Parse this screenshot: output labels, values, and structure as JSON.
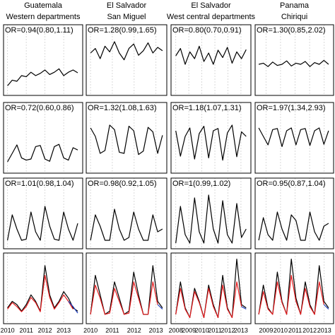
{
  "chart_data": [
    {
      "type": "line",
      "title": "Guatemala",
      "subtitle": "Western departments",
      "annotation": "OR=0.94(0.80,1.11)",
      "x": [
        2010,
        2010.25,
        2010.5,
        2010.75,
        2011,
        2011.25,
        2011.5,
        2011.75,
        2012,
        2012.25,
        2012.5,
        2012.75,
        2013,
        2013.25,
        2013.5,
        2013.75
      ],
      "xlim": [
        2009.9,
        2013.9
      ],
      "xticks": [
        2010,
        2011,
        2012,
        2013
      ],
      "ylim": [
        0,
        1
      ],
      "series": [
        {
          "color": "#000000",
          "values": [
            0.12,
            0.22,
            0.2,
            0.3,
            0.28,
            0.36,
            0.3,
            0.34,
            0.4,
            0.32,
            0.36,
            0.42,
            0.3,
            0.36,
            0.4,
            0.35
          ]
        }
      ]
    },
    {
      "type": "line",
      "title": "El Salvador",
      "subtitle": "San Miguel",
      "annotation": "OR=1.28(0.99,1.65)",
      "x": [
        2010,
        2010.22,
        2010.44,
        2010.66,
        2010.88,
        2011.1,
        2011.32,
        2011.54,
        2011.76,
        2011.98,
        2012.2,
        2012.42,
        2012.64,
        2012.86,
        2013.08,
        2013.3
      ],
      "xlim": [
        2009.9,
        2013.4
      ],
      "xticks": [
        2010,
        2011,
        2012,
        2013
      ],
      "ylim": [
        0,
        1
      ],
      "series": [
        {
          "color": "#000000",
          "values": [
            0.7,
            0.78,
            0.6,
            0.82,
            0.72,
            0.9,
            0.7,
            0.58,
            0.78,
            0.86,
            0.66,
            0.74,
            0.88,
            0.7,
            0.8,
            0.74
          ]
        }
      ]
    },
    {
      "type": "line",
      "title": "El Salvador",
      "subtitle": "West central departments",
      "annotation": "OR=0.80(0.70,0.91)",
      "x": [
        2008,
        2008.36,
        2008.72,
        2009.08,
        2009.44,
        2009.8,
        2010.16,
        2010.52,
        2010.88,
        2011.24,
        2011.6,
        2011.96,
        2012.32,
        2012.68,
        2013.04,
        2013.4
      ],
      "xlim": [
        2007.8,
        2013.6
      ],
      "xticks": [
        2008,
        2009,
        2010,
        2011,
        2012,
        2013
      ],
      "ylim": [
        0,
        1
      ],
      "series": [
        {
          "color": "#000000",
          "values": [
            0.65,
            0.78,
            0.5,
            0.72,
            0.6,
            0.82,
            0.55,
            0.7,
            0.5,
            0.75,
            0.62,
            0.8,
            0.52,
            0.72,
            0.6,
            0.76
          ]
        }
      ]
    },
    {
      "type": "line",
      "title": "Panama",
      "subtitle": "Chiriqui",
      "annotation": "OR=1.30(0.85,2.02)",
      "x": [
        2008.5,
        2008.82,
        2009.14,
        2009.46,
        2009.78,
        2010.1,
        2010.42,
        2010.74,
        2011.06,
        2011.38,
        2011.7,
        2012.02,
        2012.34,
        2012.66,
        2012.98,
        2013.3
      ],
      "xlim": [
        2008.4,
        2013.5
      ],
      "xticks": [
        2009,
        2010,
        2011,
        2012,
        2013
      ],
      "ylim": [
        0,
        1
      ],
      "series": [
        {
          "color": "#000000",
          "values": [
            0.5,
            0.52,
            0.46,
            0.54,
            0.48,
            0.5,
            0.56,
            0.47,
            0.52,
            0.5,
            0.55,
            0.46,
            0.53,
            0.5,
            0.57,
            0.5
          ]
        }
      ]
    },
    {
      "type": "line",
      "annotation": "OR=0.72(0.60,0.86)",
      "x": [
        2010,
        2010.25,
        2010.5,
        2010.75,
        2011,
        2011.25,
        2011.5,
        2011.75,
        2012,
        2012.25,
        2012.5,
        2012.75,
        2013,
        2013.25,
        2013.5,
        2013.75
      ],
      "xlim": [
        2009.9,
        2013.9
      ],
      "xticks": [
        2010,
        2011,
        2012,
        2013
      ],
      "ylim": [
        0,
        1
      ],
      "series": [
        {
          "color": "#000000",
          "values": [
            0.15,
            0.3,
            0.45,
            0.22,
            0.18,
            0.2,
            0.42,
            0.44,
            0.2,
            0.16,
            0.42,
            0.46,
            0.22,
            0.18,
            0.4,
            0.36
          ]
        }
      ]
    },
    {
      "type": "line",
      "annotation": "OR=1.32(1.08,1.63)",
      "x": [
        2010,
        2010.22,
        2010.44,
        2010.66,
        2010.88,
        2011.1,
        2011.32,
        2011.54,
        2011.76,
        2011.98,
        2012.2,
        2012.42,
        2012.64,
        2012.86,
        2013.08,
        2013.3
      ],
      "xlim": [
        2009.9,
        2013.4
      ],
      "xticks": [
        2010,
        2011,
        2012,
        2013
      ],
      "ylim": [
        0,
        1
      ],
      "series": [
        {
          "color": "#000000",
          "values": [
            0.75,
            0.6,
            0.3,
            0.35,
            0.8,
            0.72,
            0.32,
            0.3,
            0.78,
            0.7,
            0.28,
            0.34,
            0.76,
            0.68,
            0.3,
            0.62
          ]
        }
      ]
    },
    {
      "type": "line",
      "annotation": "OR=1.18(1.07,1.31)",
      "x": [
        2008,
        2008.36,
        2008.72,
        2009.08,
        2009.44,
        2009.8,
        2010.16,
        2010.52,
        2010.88,
        2011.24,
        2011.6,
        2011.96,
        2012.32,
        2012.68,
        2013.04,
        2013.4
      ],
      "xlim": [
        2007.8,
        2013.6
      ],
      "xticks": [
        2008,
        2009,
        2010,
        2011,
        2012,
        2013
      ],
      "ylim": [
        0,
        1
      ],
      "series": [
        {
          "color": "#000000",
          "values": [
            0.7,
            0.25,
            0.6,
            0.75,
            0.2,
            0.65,
            0.78,
            0.22,
            0.7,
            0.74,
            0.18,
            0.66,
            0.8,
            0.24,
            0.68,
            0.6
          ]
        }
      ]
    },
    {
      "type": "line",
      "annotation": "OR=1.97(1.34,2.93)",
      "x": [
        2008.5,
        2008.82,
        2009.14,
        2009.46,
        2009.78,
        2010.1,
        2010.42,
        2010.74,
        2011.06,
        2011.38,
        2011.7,
        2012.02,
        2012.34,
        2012.66,
        2012.98,
        2013.3
      ],
      "xlim": [
        2008.4,
        2013.5
      ],
      "xticks": [
        2009,
        2010,
        2011,
        2012,
        2013
      ],
      "ylim": [
        0,
        1
      ],
      "series": [
        {
          "color": "#000000",
          "values": [
            0.75,
            0.6,
            0.45,
            0.72,
            0.74,
            0.42,
            0.7,
            0.75,
            0.45,
            0.72,
            0.74,
            0.44,
            0.7,
            0.75,
            0.46,
            0.7
          ]
        }
      ]
    },
    {
      "type": "line",
      "annotation": "OR=1.01(0.98,1.04)",
      "x": [
        2010,
        2010.25,
        2010.5,
        2010.75,
        2011,
        2011.25,
        2011.5,
        2011.75,
        2012,
        2012.25,
        2012.5,
        2012.75,
        2013,
        2013.25,
        2013.5,
        2013.75
      ],
      "xlim": [
        2009.9,
        2013.9
      ],
      "xticks": [
        2010,
        2011,
        2012,
        2013
      ],
      "ylim": [
        0,
        1
      ],
      "series": [
        {
          "color": "#000000",
          "values": [
            0.1,
            0.55,
            0.3,
            0.1,
            0.12,
            0.6,
            0.25,
            0.1,
            0.7,
            0.35,
            0.12,
            0.1,
            0.6,
            0.3,
            0.1,
            0.4
          ]
        }
      ]
    },
    {
      "type": "line",
      "annotation": "OR=0.98(0.92,1.05)",
      "x": [
        2010,
        2010.22,
        2010.44,
        2010.66,
        2010.88,
        2011.1,
        2011.32,
        2011.54,
        2011.76,
        2011.98,
        2012.2,
        2012.42,
        2012.64,
        2012.86,
        2013.08,
        2013.3
      ],
      "xlim": [
        2009.9,
        2013.4
      ],
      "xticks": [
        2010,
        2011,
        2012,
        2013
      ],
      "ylim": [
        0,
        1
      ],
      "series": [
        {
          "color": "#000000",
          "values": [
            0.1,
            0.55,
            0.35,
            0.1,
            0.1,
            0.65,
            0.3,
            0.1,
            0.15,
            0.6,
            0.3,
            0.1,
            0.1,
            0.55,
            0.25,
            0.3
          ]
        }
      ]
    },
    {
      "type": "line",
      "annotation": "OR=1(0.99,1.02)",
      "x": [
        2008,
        2008.36,
        2008.72,
        2009.08,
        2009.44,
        2009.8,
        2010.16,
        2010.52,
        2010.88,
        2011.24,
        2011.6,
        2011.96,
        2012.32,
        2012.68,
        2013.04,
        2013.4
      ],
      "xlim": [
        2007.8,
        2013.6
      ],
      "xticks": [
        2008,
        2009,
        2010,
        2011,
        2012,
        2013
      ],
      "ylim": [
        0,
        1
      ],
      "series": [
        {
          "color": "#000000",
          "values": [
            0.05,
            0.7,
            0.2,
            0.05,
            0.85,
            0.25,
            0.05,
            0.9,
            0.3,
            0.05,
            0.8,
            0.2,
            0.05,
            0.75,
            0.15,
            0.3
          ]
        }
      ]
    },
    {
      "type": "line",
      "annotation": "OR=0.95(0.87,1.04)",
      "x": [
        2008.5,
        2008.82,
        2009.14,
        2009.46,
        2009.78,
        2010.1,
        2010.42,
        2010.74,
        2011.06,
        2011.38,
        2011.7,
        2012.02,
        2012.34,
        2012.66,
        2012.98,
        2013.3
      ],
      "xlim": [
        2008.4,
        2013.5
      ],
      "xticks": [
        2009,
        2010,
        2011,
        2012,
        2013
      ],
      "ylim": [
        0,
        1
      ],
      "series": [
        {
          "color": "#000000",
          "values": [
            0.1,
            0.5,
            0.2,
            0.1,
            0.6,
            0.3,
            0.1,
            0.55,
            0.45,
            0.1,
            0.1,
            0.6,
            0.25,
            0.1,
            0.35,
            0.4
          ]
        }
      ]
    },
    {
      "type": "line",
      "x": [
        2010,
        2010.25,
        2010.5,
        2010.75,
        2011,
        2011.25,
        2011.5,
        2011.75,
        2012,
        2012.25,
        2012.5,
        2012.75,
        2013,
        2013.25,
        2013.5,
        2013.75
      ],
      "xlim": [
        2009.9,
        2013.9
      ],
      "xticks": [
        2010,
        2011,
        2012,
        2013
      ],
      "xtick_labels": true,
      "ylim": [
        0,
        1
      ],
      "series": [
        {
          "color": "#000000",
          "values": [
            0.2,
            0.3,
            0.25,
            0.15,
            0.25,
            0.4,
            0.3,
            0.15,
            0.85,
            0.4,
            0.2,
            0.3,
            0.45,
            0.35,
            0.2,
            0.15
          ]
        },
        {
          "color": "#e41a1c",
          "values": [
            0.18,
            0.28,
            0.22,
            0.14,
            0.22,
            0.36,
            0.28,
            0.14,
            0.7,
            0.36,
            0.18,
            0.28,
            0.4,
            0.3,
            0.18,
            null
          ]
        },
        {
          "color": "#1f3fbf",
          "values": [
            null,
            null,
            null,
            null,
            null,
            null,
            null,
            null,
            null,
            null,
            null,
            null,
            null,
            0.3,
            0.22,
            0.12
          ]
        }
      ]
    },
    {
      "type": "line",
      "x": [
        2010,
        2010.22,
        2010.44,
        2010.66,
        2010.88,
        2011.1,
        2011.32,
        2011.54,
        2011.76,
        2011.98,
        2012.2,
        2012.42,
        2012.64,
        2012.86,
        2013.08,
        2013.3
      ],
      "xlim": [
        2009.9,
        2013.4
      ],
      "xticks": [
        2010,
        2011,
        2012,
        2013
      ],
      "xtick_labels": true,
      "ylim": [
        0,
        1
      ],
      "series": [
        {
          "color": "#000000",
          "values": [
            0.1,
            0.7,
            0.4,
            0.1,
            0.15,
            0.6,
            0.35,
            0.1,
            0.15,
            0.75,
            0.4,
            0.1,
            0.1,
            0.85,
            0.3,
            0.2
          ]
        },
        {
          "color": "#e41a1c",
          "values": [
            0.1,
            0.55,
            0.35,
            0.1,
            0.12,
            0.5,
            0.3,
            0.1,
            0.12,
            0.6,
            0.35,
            0.1,
            0.1,
            0.6,
            0.25,
            null
          ]
        },
        {
          "color": "#1f3fbf",
          "values": [
            null,
            null,
            null,
            null,
            null,
            null,
            null,
            null,
            null,
            null,
            null,
            null,
            null,
            null,
            0.25,
            0.18
          ]
        }
      ]
    },
    {
      "type": "line",
      "x": [
        2008,
        2008.36,
        2008.72,
        2009.08,
        2009.44,
        2009.8,
        2010.16,
        2010.52,
        2010.88,
        2011.24,
        2011.6,
        2011.96,
        2012.32,
        2012.68,
        2013.04,
        2013.4
      ],
      "xlim": [
        2007.8,
        2013.6
      ],
      "xticks": [
        2008,
        2009,
        2010,
        2011,
        2012,
        2013
      ],
      "xtick_labels": true,
      "ylim": [
        0,
        1
      ],
      "series": [
        {
          "color": "#000000",
          "values": [
            0.1,
            0.6,
            0.2,
            0.05,
            0.5,
            0.3,
            0.05,
            0.55,
            0.25,
            0.05,
            0.7,
            0.2,
            0.05,
            0.95,
            0.25,
            0.2
          ]
        },
        {
          "color": "#e41a1c",
          "values": [
            0.1,
            0.5,
            0.18,
            0.05,
            0.45,
            0.28,
            0.05,
            0.5,
            0.22,
            0.05,
            0.55,
            0.18,
            0.05,
            0.6,
            0.22,
            null
          ]
        },
        {
          "color": "#1f3fbf",
          "values": [
            null,
            null,
            null,
            null,
            null,
            null,
            null,
            null,
            null,
            null,
            null,
            null,
            null,
            null,
            0.22,
            0.18
          ]
        }
      ]
    },
    {
      "type": "line",
      "x": [
        2008.5,
        2008.82,
        2009.14,
        2009.46,
        2009.78,
        2010.1,
        2010.42,
        2010.74,
        2011.06,
        2011.38,
        2011.7,
        2012.02,
        2012.34,
        2012.66,
        2012.98,
        2013.3
      ],
      "xlim": [
        2008.4,
        2013.5
      ],
      "xticks": [
        2009,
        2010,
        2011,
        2012,
        2013
      ],
      "xtick_labels": true,
      "ylim": [
        0,
        1
      ],
      "series": [
        {
          "color": "#000000",
          "values": [
            0.1,
            0.55,
            0.2,
            0.1,
            0.75,
            0.3,
            0.1,
            0.95,
            0.35,
            0.1,
            0.6,
            0.25,
            0.1,
            0.85,
            0.3,
            0.2
          ]
        },
        {
          "color": "#e41a1c",
          "values": [
            0.1,
            0.45,
            0.18,
            0.1,
            0.6,
            0.28,
            0.1,
            0.7,
            0.3,
            0.1,
            0.5,
            0.22,
            0.1,
            0.6,
            0.25,
            null
          ]
        },
        {
          "color": "#1f3fbf",
          "values": [
            null,
            null,
            null,
            null,
            null,
            null,
            null,
            null,
            null,
            null,
            null,
            null,
            null,
            null,
            0.25,
            0.18
          ]
        }
      ]
    }
  ]
}
